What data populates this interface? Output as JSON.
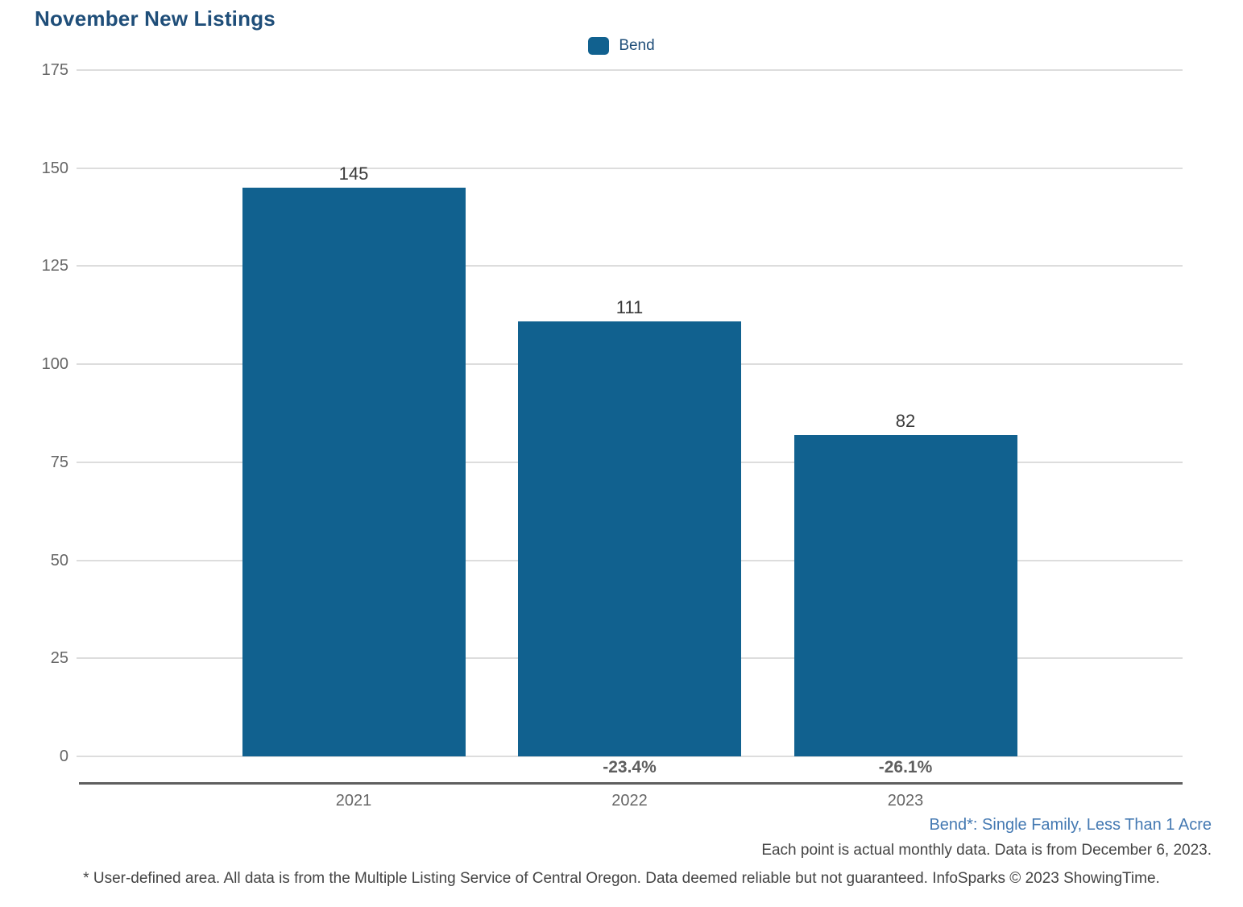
{
  "title": "November New Listings",
  "legend": {
    "label": "Bend"
  },
  "chart_data": {
    "type": "bar",
    "title": "November New Listings",
    "categories": [
      "2021",
      "2022",
      "2023"
    ],
    "series": [
      {
        "name": "Bend",
        "values": [
          145,
          111,
          82
        ]
      }
    ],
    "value_labels": [
      "145",
      "111",
      "82"
    ],
    "pct_change_labels": [
      "",
      "-23.4%",
      "-26.1%"
    ],
    "xlabel": "",
    "ylabel": "",
    "ylim": [
      0,
      175
    ],
    "yticks": [
      0,
      25,
      50,
      75,
      100,
      125,
      150,
      175
    ],
    "grid": true,
    "legend_position": "top-center"
  },
  "footnotes": {
    "area_definition": "Bend*: Single Family, Less Than 1 Acre",
    "data_note": "Each point is actual monthly data. Data is from December 6, 2023.",
    "disclaimer": "* User-defined area. All data is from the Multiple Listing Service of Central Oregon. Data deemed reliable but not guaranteed. InfoSparks © 2023 ShowingTime."
  },
  "colors": {
    "bar": "#11618F",
    "title": "#1F4E79",
    "legend_text": "#1F4E79",
    "axis_text": "#666666",
    "value_label": "#3A3A3A",
    "pct_label": "#5E5E5E",
    "gridline": "#DDDDDD",
    "axis_line": "#5F5F5F",
    "footnote_blue": "#4479B2",
    "footnote_gray": "#444444"
  }
}
